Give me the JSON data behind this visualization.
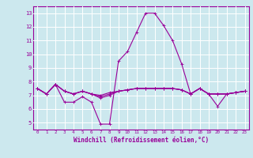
{
  "bg_color": "#cce8ee",
  "line_color": "#990099",
  "grid_color": "#ffffff",
  "xlabel": "Windchill (Refroidissement éolien,°C)",
  "ylabel_ticks": [
    5,
    6,
    7,
    8,
    9,
    10,
    11,
    12,
    13
  ],
  "xticks": [
    0,
    1,
    2,
    3,
    4,
    5,
    6,
    7,
    8,
    9,
    10,
    11,
    12,
    13,
    14,
    15,
    16,
    17,
    18,
    19,
    20,
    21,
    22,
    23
  ],
  "xlim": [
    -0.5,
    23.5
  ],
  "ylim": [
    4.5,
    13.5
  ],
  "curves": [
    [
      7.5,
      7.1,
      7.8,
      6.5,
      6.5,
      6.9,
      6.5,
      4.9,
      4.9,
      9.5,
      10.2,
      11.6,
      13.0,
      13.0,
      12.1,
      11.0,
      9.3,
      7.1,
      7.5,
      7.1,
      6.2,
      7.1,
      7.2,
      7.3
    ],
    [
      7.5,
      7.1,
      7.8,
      7.3,
      7.1,
      7.3,
      7.1,
      6.8,
      7.0,
      7.3,
      7.4,
      7.5,
      7.5,
      7.5,
      7.5,
      7.5,
      7.4,
      7.1,
      7.5,
      7.1,
      7.1,
      7.1,
      7.2,
      7.3
    ],
    [
      7.5,
      7.1,
      7.8,
      7.3,
      7.1,
      7.3,
      7.1,
      6.9,
      7.1,
      7.3,
      7.4,
      7.5,
      7.5,
      7.5,
      7.5,
      7.5,
      7.4,
      7.1,
      7.5,
      7.1,
      7.1,
      7.1,
      7.2,
      7.3
    ],
    [
      7.5,
      7.1,
      7.8,
      7.3,
      7.1,
      7.3,
      7.1,
      7.0,
      7.2,
      7.3,
      7.4,
      7.5,
      7.5,
      7.5,
      7.5,
      7.5,
      7.4,
      7.1,
      7.5,
      7.1,
      7.1,
      7.1,
      7.2,
      7.3
    ]
  ],
  "title_fontsize": 5.5,
  "tick_fontsize_x": 4.2,
  "tick_fontsize_y": 5.0,
  "xlabel_fontsize": 5.5,
  "linewidth": 0.8,
  "markersize": 2.5
}
